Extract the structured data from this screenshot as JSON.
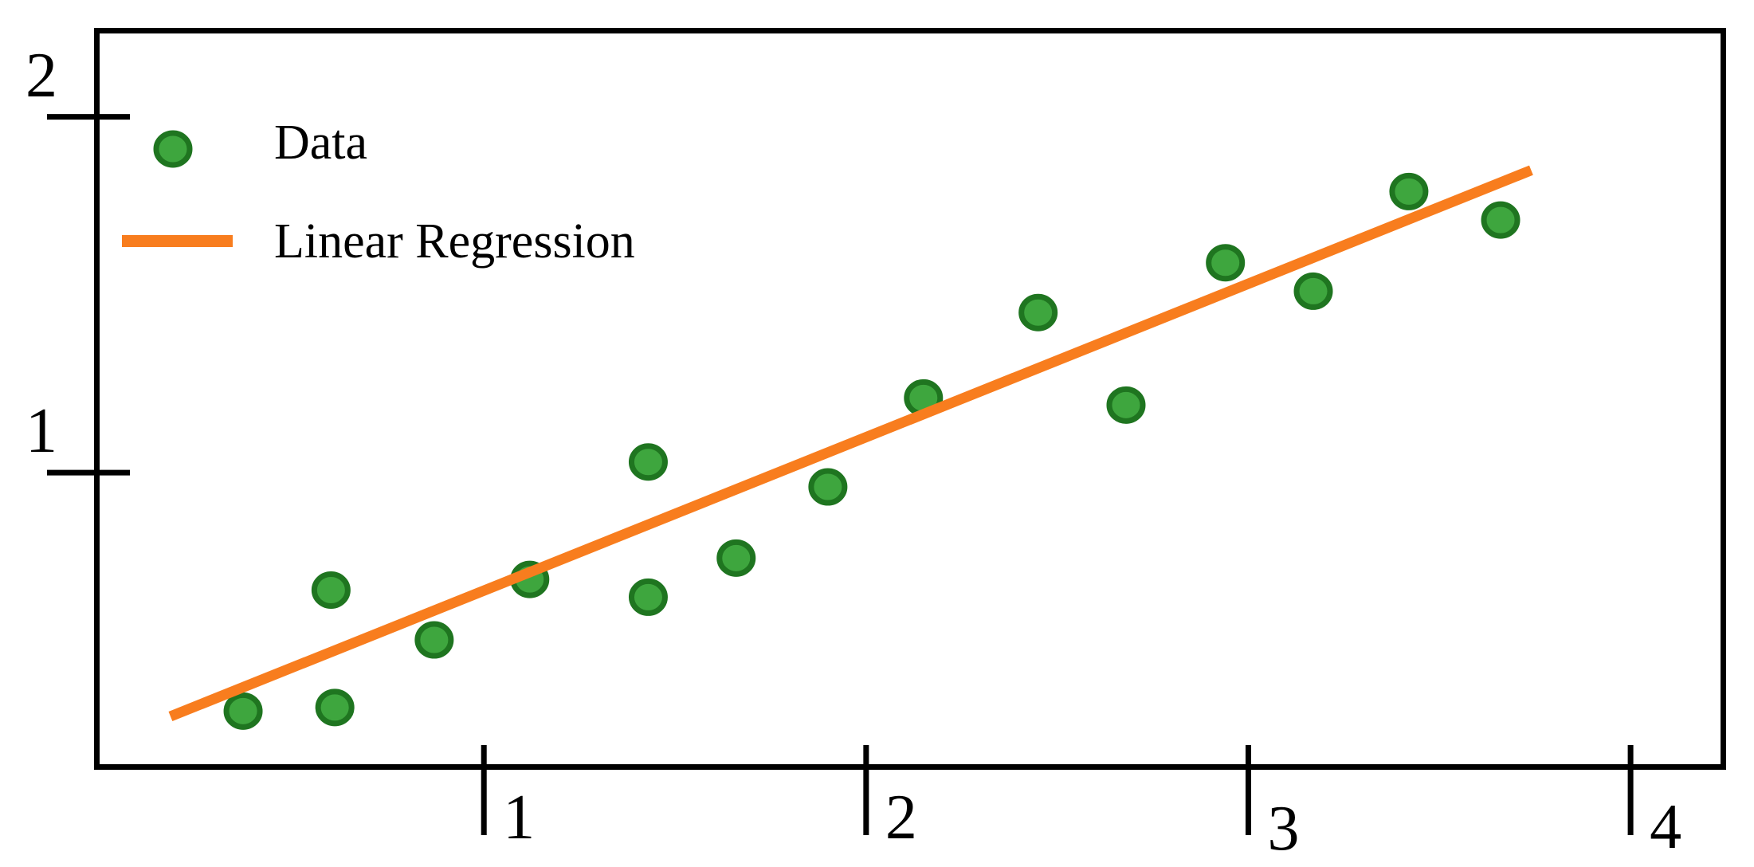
{
  "chart_data": {
    "type": "scatter",
    "title": "",
    "xlabel": "",
    "ylabel": "",
    "xlim": [
      -0.02,
      4.25
    ],
    "ylim": [
      0.165,
      2.25
    ],
    "x_ticks": [
      1,
      2,
      3,
      4
    ],
    "y_ticks": [
      1,
      2
    ],
    "x_tick_labels": [
      "1",
      "2",
      "3",
      "4"
    ],
    "y_tick_labels": [
      "1",
      "2"
    ],
    "grid": false,
    "legend_position": "upper-left",
    "series": [
      {
        "name": "Data",
        "type": "scatter",
        "marker": "circle",
        "fill_color": "#3EA63E",
        "edge_color": "#1F7520",
        "points": [
          [
            0.37,
            0.33
          ],
          [
            0.61,
            0.34
          ],
          [
            0.6,
            0.67
          ],
          [
            0.87,
            0.53
          ],
          [
            1.12,
            0.7
          ],
          [
            1.43,
            1.03
          ],
          [
            1.43,
            0.65
          ],
          [
            1.66,
            0.76
          ],
          [
            1.9,
            0.96
          ],
          [
            2.15,
            1.21
          ],
          [
            2.45,
            1.45
          ],
          [
            2.68,
            1.19
          ],
          [
            2.94,
            1.59
          ],
          [
            3.17,
            1.51
          ],
          [
            3.42,
            1.79
          ],
          [
            3.66,
            1.71
          ]
        ]
      },
      {
        "name": "Linear Regression",
        "type": "line",
        "color": "#F87D1E",
        "endpoints": [
          [
            0.18,
            0.315
          ],
          [
            3.74,
            1.85
          ]
        ]
      }
    ]
  },
  "legend": {
    "items": [
      {
        "label": "Data",
        "swatch": "marker"
      },
      {
        "label": "Linear Regression",
        "swatch": "line"
      }
    ]
  },
  "colors": {
    "axis": "#000000",
    "tick_label": "#000000",
    "background": "#ffffff",
    "scatter_fill": "#3EA63E",
    "scatter_edge": "#1F7520",
    "regression_line": "#F87D1E"
  }
}
